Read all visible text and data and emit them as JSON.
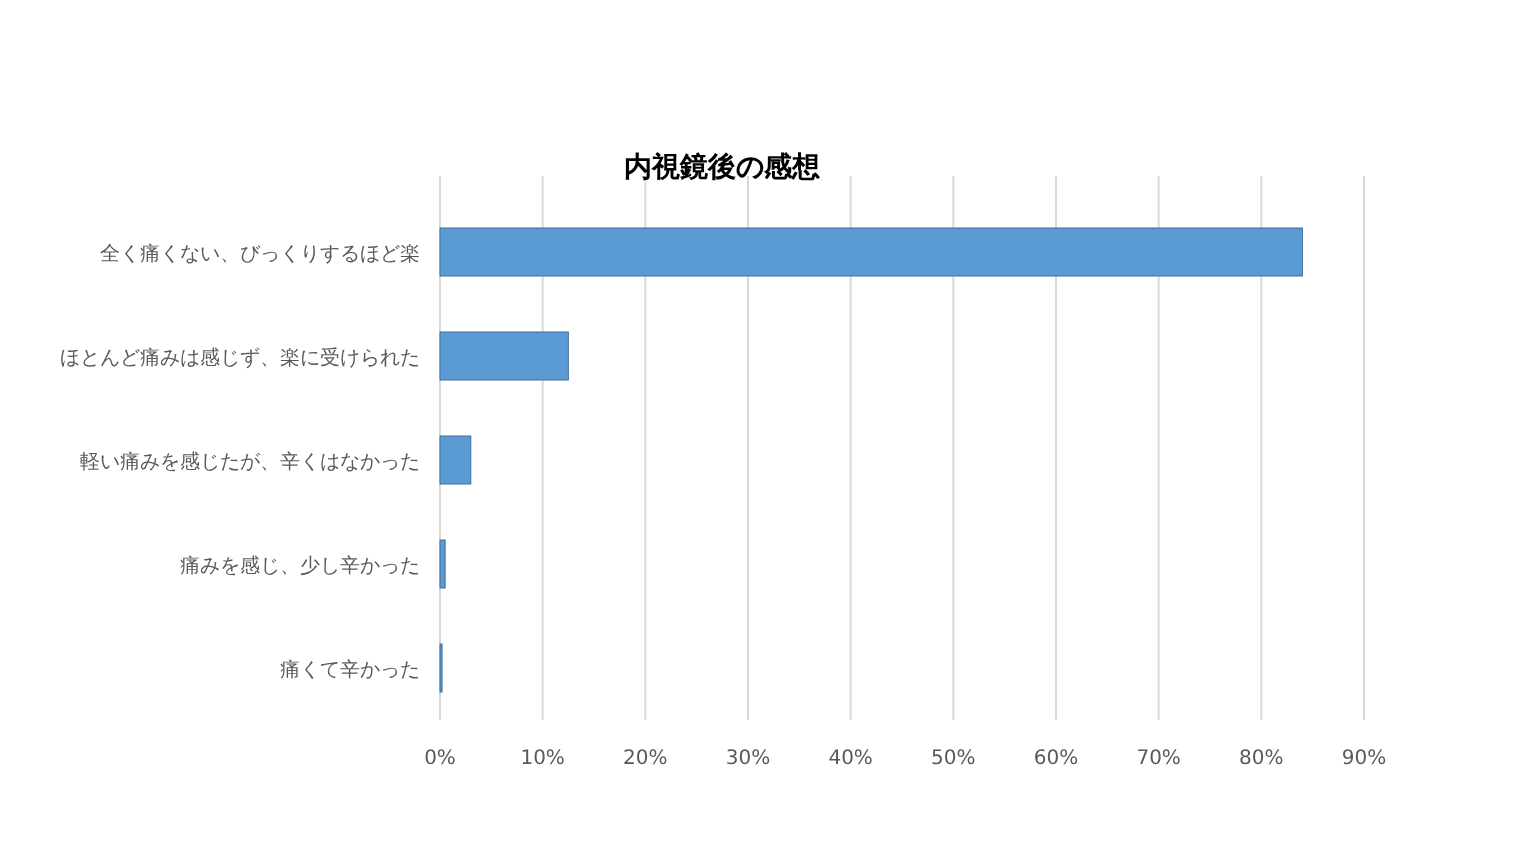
{
  "chart_data": {
    "type": "bar",
    "orientation": "horizontal",
    "title": "内視鏡後の感想",
    "categories": [
      "全く痛くない、びっくりするほど楽",
      "ほとんど痛みは感じず、楽に受けられた",
      "軽い痛みを感じたが、辛くはなかった",
      "痛みを感じ、少し辛かった",
      "痛くて辛かった"
    ],
    "values": [
      84,
      12.5,
      3,
      0.5,
      0.2
    ],
    "color": "#5b9bd5",
    "xlim": [
      0,
      90
    ],
    "xticks": [
      {
        "value": 0,
        "label": "0%"
      },
      {
        "value": 10,
        "label": "10%"
      },
      {
        "value": 20,
        "label": "20%"
      },
      {
        "value": 30,
        "label": "30%"
      },
      {
        "value": 40,
        "label": "40%"
      },
      {
        "value": 50,
        "label": "50%"
      },
      {
        "value": 60,
        "label": "60%"
      },
      {
        "value": 70,
        "label": "70%"
      },
      {
        "value": 80,
        "label": "80%"
      },
      {
        "value": 90,
        "label": "90%"
      }
    ],
    "grid": "x"
  }
}
